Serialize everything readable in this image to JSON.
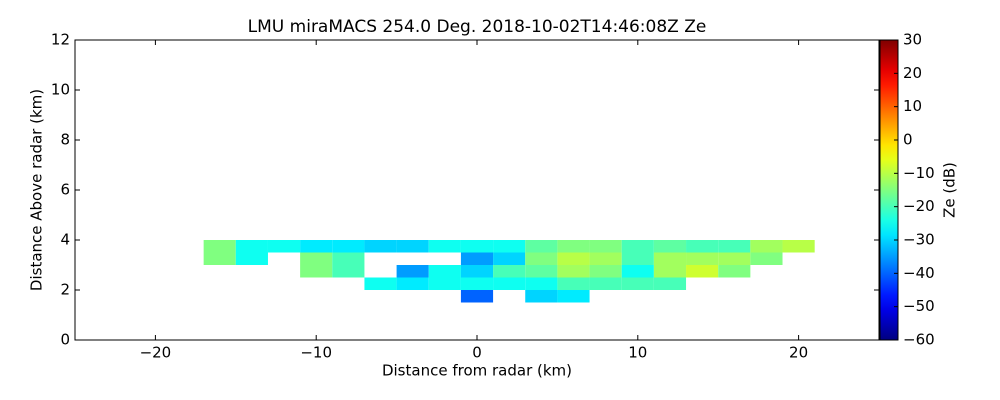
{
  "chart_data": {
    "type": "heatmap",
    "title": "LMU miraMACS 254.0 Deg. 2018-10-02T14:46:08Z  Ze",
    "xlabel": "Distance from radar (km)",
    "ylabel": "Distance Above radar  (km)",
    "colorbar_label": "Ze (dB)",
    "colormap": "jet",
    "xlim": [
      -25,
      25
    ],
    "xticks": [
      {
        "value": -20,
        "label": "−20"
      },
      {
        "value": -10,
        "label": "−10"
      },
      0,
      10,
      20
    ],
    "ylim": [
      0,
      12
    ],
    "yticks": [
      0,
      2,
      4,
      6,
      8,
      10,
      12
    ],
    "clim": [
      -60,
      30
    ],
    "cticks": [
      {
        "value": -60,
        "label": "−60"
      },
      {
        "value": -50,
        "label": "−50"
      },
      {
        "value": -40,
        "label": "−40"
      },
      {
        "value": -30,
        "label": "−30"
      },
      {
        "value": -20,
        "label": "−20"
      },
      {
        "value": -10,
        "label": "−10"
      },
      0,
      10,
      20,
      30
    ],
    "xbins": [
      -17,
      -15,
      -13,
      -11,
      -9,
      -7,
      -5,
      -3,
      -1,
      1,
      3,
      5,
      7,
      9,
      11,
      13,
      15,
      17,
      19,
      21,
      23
    ],
    "ybins": [
      1.5,
      2,
      2.5,
      3,
      3.5,
      4
    ],
    "values": [
      [
        null,
        null,
        null,
        null,
        null,
        null,
        null,
        null,
        -40,
        null,
        -30,
        -28,
        null,
        null,
        null,
        null,
        null,
        null,
        null,
        null
      ],
      [
        null,
        null,
        null,
        null,
        null,
        -25,
        -28,
        -25,
        -25,
        -25,
        -25,
        -20,
        -20,
        -20,
        -20,
        null,
        null,
        null,
        null,
        null
      ],
      [
        null,
        null,
        null,
        -15,
        -20,
        null,
        -35,
        -25,
        -30,
        -20,
        -18,
        -12,
        -15,
        -25,
        -12,
        -8,
        -15,
        null,
        null,
        null
      ],
      [
        -15,
        -25,
        null,
        -15,
        -20,
        null,
        null,
        null,
        -35,
        -30,
        -15,
        -10,
        -12,
        -20,
        -12,
        -12,
        -12,
        -15,
        null,
        null
      ],
      [
        -15,
        -25,
        -25,
        -28,
        -28,
        -30,
        -30,
        -25,
        -25,
        -25,
        -18,
        -15,
        -15,
        -20,
        -18,
        -20,
        -20,
        -12,
        -10,
        null
      ]
    ]
  }
}
